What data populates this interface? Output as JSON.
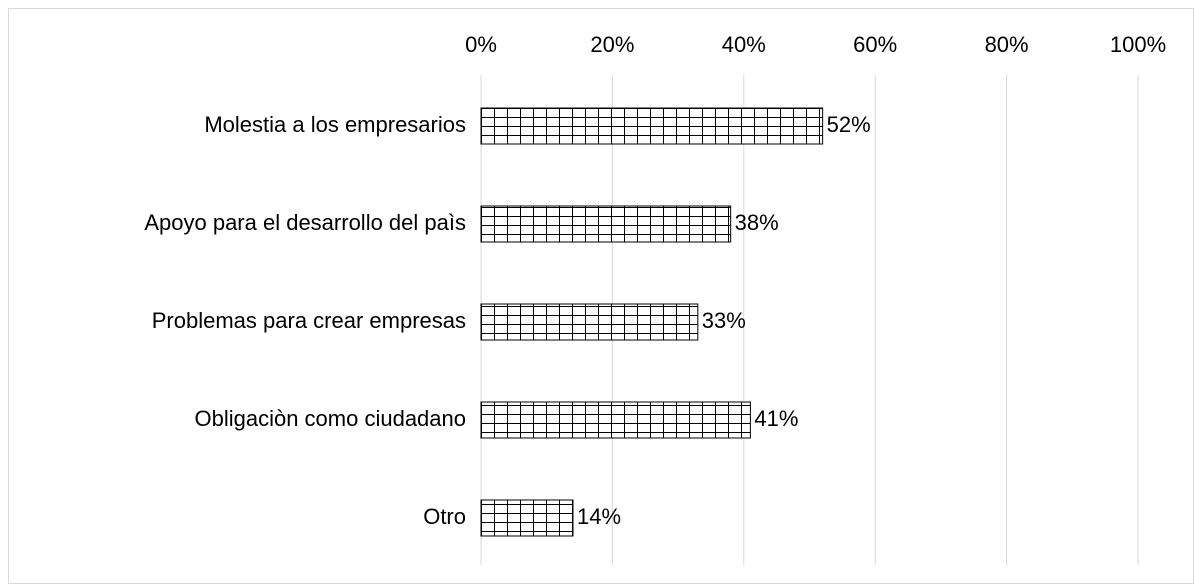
{
  "chart_data": {
    "type": "bar",
    "orientation": "horizontal",
    "categories": [
      "Molestia a los empresarios",
      "Apoyo para el desarrollo del paìs",
      "Problemas para crear empresas",
      "Obligaciòn como ciudadano",
      "Otro"
    ],
    "values": [
      52,
      38,
      33,
      41,
      14
    ],
    "value_labels": [
      "52%",
      "38%",
      "33%",
      "41%",
      "14%"
    ],
    "color": "#000000",
    "xlim": [
      0,
      100
    ],
    "xticks": [
      {
        "value": 0,
        "label": "0%"
      },
      {
        "value": 20,
        "label": "20%"
      },
      {
        "value": 40,
        "label": "40%"
      },
      {
        "value": 60,
        "label": "60%"
      },
      {
        "value": 80,
        "label": "80%"
      },
      {
        "value": 100,
        "label": "100%"
      }
    ],
    "grid": true
  }
}
